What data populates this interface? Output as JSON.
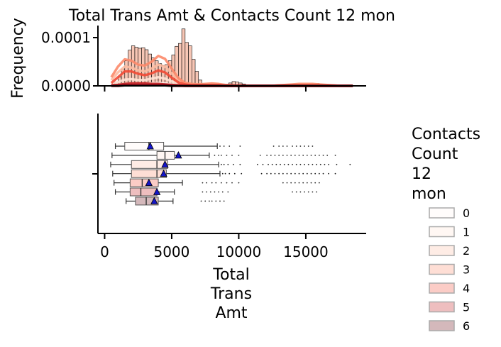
{
  "chart_data": [
    {
      "type": "histogram",
      "panel": "top",
      "title": "Total Trans Amt & Contacts Count 12 mon",
      "ylabel": "Frequency",
      "xlim": [
        -500,
        19500
      ],
      "ylim": [
        0,
        0.000125
      ],
      "y_ticks": [
        0,
        0.0001
      ],
      "y_tick_labels": [
        "0.0000",
        "0.0001"
      ],
      "x_ticks": [
        0,
        5000,
        10000,
        15000
      ],
      "bins": {
        "start": 500,
        "width": 250,
        "heights": [
          2e-06,
          8e-06,
          1.8e-05,
          3.5e-05,
          5.2e-05,
          7.4e-05,
          8.3e-05,
          8e-05,
          7.8e-05,
          7.9e-05,
          7.5e-05,
          6.6e-05,
          5.8e-05,
          5.2e-05,
          4.6e-05,
          4.2e-05,
          4.4e-05,
          5.2e-05,
          6.4e-05,
          8.2e-05,
          8.8e-05,
          0.000118,
          9e-05,
          8.3e-05,
          5.5e-05,
          3e-05,
          1.2e-05,
          5e-06,
          2e-06,
          1e-06,
          1e-06,
          1e-06,
          1e-06,
          2e-06,
          3e-06,
          6e-06,
          9e-06,
          8e-06,
          6e-06,
          4e-06,
          2e-06,
          1e-06,
          1e-06,
          0,
          0,
          0,
          0,
          0,
          0,
          0,
          0,
          0,
          0,
          0,
          1e-06,
          1e-06,
          2e-06,
          3e-06,
          4e-06,
          5e-06,
          5e-06,
          5e-06,
          4e-06,
          3e-06,
          2e-06,
          1e-06
        ]
      },
      "kde_x": [
        500,
        1000,
        1500,
        2000,
        2500,
        3000,
        3500,
        4000,
        4500,
        5000,
        5500,
        6000,
        6500,
        7000,
        7500,
        8000,
        8500,
        9000,
        9500,
        10000,
        10500,
        11000,
        11500,
        12000,
        12500,
        13000,
        13500,
        14000,
        14500,
        15000,
        15500,
        16000,
        16500,
        17000,
        17500,
        18000,
        18500
      ],
      "kde_series": [
        {
          "name": "0",
          "color": "#fff5f0",
          "values": [
            1e-06,
            2e-06,
            4e-06,
            5e-06,
            4e-06,
            4e-06,
            5e-06,
            6e-06,
            5e-06,
            3e-06,
            2e-06,
            1e-06,
            1e-06,
            1e-06,
            1e-06,
            1e-06,
            1e-06,
            0,
            0,
            0,
            0,
            0,
            0,
            0,
            0,
            0,
            0,
            0,
            0,
            0,
            0,
            0,
            0,
            0,
            0,
            0,
            0
          ]
        },
        {
          "name": "1",
          "color": "#fee2d5",
          "values": [
            3e-06,
            8e-06,
            1.3e-05,
            1.4e-05,
            1.2e-05,
            1.2e-05,
            1.5e-05,
            1.8e-05,
            1.5e-05,
            9e-06,
            5e-06,
            2e-06,
            1e-06,
            1e-06,
            1e-06,
            1e-06,
            1e-06,
            1e-06,
            0,
            0,
            0,
            0,
            0,
            0,
            0,
            0,
            0,
            1e-06,
            1e-06,
            1e-06,
            1e-06,
            1e-06,
            0,
            0,
            0,
            0,
            0
          ]
        },
        {
          "name": "2",
          "color": "#fcbba1",
          "values": [
            1.2e-05,
            2.8e-05,
            4e-05,
            3.8e-05,
            3.2e-05,
            3e-05,
            3.6e-05,
            4.4e-05,
            4e-05,
            2.6e-05,
            1.2e-05,
            5e-06,
            3e-06,
            2e-06,
            3e-06,
            4e-06,
            3e-06,
            1e-06,
            0,
            0,
            0,
            0,
            0,
            0,
            0,
            1e-06,
            1e-06,
            2e-06,
            3e-06,
            3e-06,
            3e-06,
            2e-06,
            1e-06,
            1e-06,
            0,
            0,
            0
          ]
        },
        {
          "name": "3",
          "color": "#fc8a6a",
          "values": [
            1.8e-05,
            4e-05,
            5.5e-05,
            5.2e-05,
            4.4e-05,
            4.2e-05,
            5e-05,
            6.2e-05,
            5.6e-05,
            3.6e-05,
            1.6e-05,
            6e-06,
            4e-06,
            3e-06,
            4e-06,
            5e-06,
            4e-06,
            2e-06,
            1e-06,
            0,
            0,
            0,
            0,
            0,
            0,
            1e-06,
            2e-06,
            3e-06,
            4e-06,
            4e-06,
            4e-06,
            3e-06,
            2e-06,
            1e-06,
            0,
            0,
            0
          ]
        },
        {
          "name": "4",
          "color": "#f24a35",
          "values": [
            6e-06,
            1.8e-05,
            3e-05,
            3e-05,
            2.5e-05,
            2.2e-05,
            2.6e-05,
            3.2e-05,
            2.8e-05,
            1.7e-05,
            7e-06,
            3e-06,
            1e-06,
            1e-06,
            1e-06,
            1e-06,
            1e-06,
            0,
            0,
            0,
            0,
            0,
            0,
            0,
            0,
            0,
            0,
            0,
            0,
            0,
            0,
            0,
            0,
            0,
            0,
            0,
            0
          ]
        },
        {
          "name": "5",
          "color": "#c2161b",
          "values": [
            1e-06,
            2e-06,
            4e-06,
            5e-06,
            5e-06,
            5e-06,
            4e-06,
            4e-06,
            3e-06,
            2e-06,
            1e-06,
            0,
            0,
            0,
            0,
            0,
            0,
            0,
            0,
            0,
            0,
            0,
            0,
            0,
            0,
            0,
            0,
            0,
            0,
            0,
            0,
            0,
            0,
            0,
            0,
            0,
            0
          ]
        },
        {
          "name": "6",
          "color": "#67000d",
          "values": [
            0,
            0,
            1e-06,
            1e-06,
            1e-06,
            1e-06,
            1e-06,
            1e-06,
            1e-06,
            0,
            0,
            0,
            0,
            0,
            0,
            0,
            0,
            0,
            0,
            0,
            0,
            0,
            0,
            0,
            0,
            0,
            0,
            0,
            0,
            0,
            0,
            0,
            0,
            0,
            0,
            0,
            0
          ]
        }
      ]
    },
    {
      "type": "boxplot",
      "panel": "bottom",
      "xlabel": "Total\nTrans\nAmt",
      "xlim": [
        -500,
        19500
      ],
      "x_ticks": [
        0,
        5000,
        10000,
        15000
      ],
      "x_tick_labels": [
        "0",
        "5000",
        "10000",
        "15000"
      ],
      "legend_title": "Contacts\nCount\n12\nmon",
      "legend_position": "right",
      "boxes": [
        {
          "name": "0",
          "color": "#fff5f0",
          "whisker_low": 800,
          "q1": 1500,
          "median": 3300,
          "q3": 4400,
          "whisker_high": 8400,
          "mean": 3400,
          "outliers": [
            8600,
            8900,
            9300,
            10100,
            12600,
            13000,
            13300,
            13600,
            14000,
            14300,
            14600,
            14900,
            15200,
            15500
          ]
        },
        {
          "name": "1",
          "color": "#fee2d5",
          "whisker_low": 550,
          "q1": 3900,
          "median": 4500,
          "q3": 5200,
          "whisker_high": 7800,
          "mean": 5500,
          "outliers": [
            8200,
            8500,
            8700,
            9100,
            9500,
            10000,
            11600,
            12100,
            12400,
            12700,
            13000,
            13300,
            13600,
            13900,
            14200,
            14500,
            14800,
            15100,
            15400,
            15700,
            16000,
            16300,
            16600,
            17200
          ]
        },
        {
          "name": "2",
          "color": "#fcbba1",
          "whisker_low": 450,
          "q1": 2000,
          "median": 3900,
          "q3": 4700,
          "whisker_high": 8500,
          "mean": 4500,
          "outliers": [
            8700,
            8900,
            9200,
            9600,
            10100,
            11400,
            11800,
            12200,
            12500,
            12800,
            13100,
            13400,
            13700,
            14000,
            14300,
            14600,
            14900,
            15200,
            15500,
            15800,
            16100,
            16400,
            16700,
            17300,
            18300
          ]
        },
        {
          "name": "3",
          "color": "#fc8a6a",
          "whisker_low": 600,
          "q1": 2000,
          "median": 3900,
          "q3": 4600,
          "whisker_high": 8600,
          "mean": 4400,
          "outliers": [
            8800,
            9000,
            9300,
            9700,
            10200,
            11700,
            12100,
            12400,
            12700,
            13000,
            13300,
            13600,
            13900,
            14200,
            14500,
            14800,
            15100,
            15400,
            15700,
            16000,
            16300,
            16700,
            17200
          ]
        },
        {
          "name": "4",
          "color": "#f24a35",
          "whisker_low": 700,
          "q1": 1900,
          "median": 2800,
          "q3": 4000,
          "whisker_high": 5800,
          "mean": 3300,
          "outliers": [
            7300,
            7600,
            8000,
            8300,
            8700,
            9100,
            9500,
            10000,
            13300,
            13600,
            13900,
            14200,
            14500,
            14800,
            15100,
            15400,
            15700,
            16000
          ]
        },
        {
          "name": "5",
          "color": "#c2161b",
          "whisker_low": 800,
          "q1": 1900,
          "median": 2700,
          "q3": 3900,
          "whisker_high": 5200,
          "mean": 3900,
          "outliers": [
            7300,
            7600,
            7900,
            8200,
            8500,
            8800,
            9200,
            14000,
            14300,
            14600,
            14900,
            15200,
            15500,
            15800
          ]
        },
        {
          "name": "6",
          "color": "#67000d",
          "whisker_low": 1600,
          "q1": 2300,
          "median": 3100,
          "q3": 4000,
          "whisker_high": 5100,
          "mean": 3700,
          "outliers": [
            7200,
            7500,
            7800,
            8000,
            8300,
            8600,
            8900
          ]
        }
      ]
    }
  ]
}
